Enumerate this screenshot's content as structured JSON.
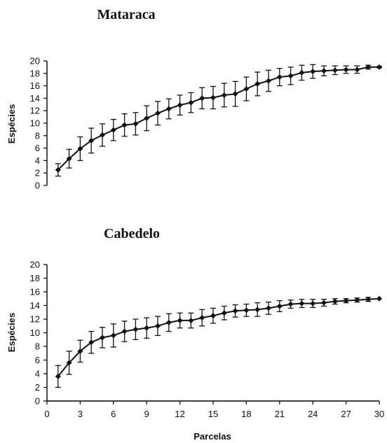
{
  "chart_data": [
    {
      "type": "line",
      "title": "Mataraca",
      "ylabel": "Espécies",
      "xlabel": "",
      "ylim": [
        0,
        20
      ],
      "yticks": [
        0,
        2,
        4,
        6,
        8,
        10,
        12,
        14,
        16,
        18,
        20
      ],
      "xlim": [
        0,
        30
      ],
      "show_x_tick_labels": false,
      "x": [
        1,
        2,
        3,
        4,
        5,
        6,
        7,
        8,
        9,
        10,
        11,
        12,
        13,
        14,
        15,
        16,
        17,
        18,
        19,
        20,
        21,
        22,
        23,
        24,
        25,
        26,
        27,
        28,
        29,
        30
      ],
      "series": [
        {
          "values": [
            2.5,
            4.3,
            5.9,
            7.2,
            8.1,
            8.9,
            9.7,
            9.9,
            10.8,
            11.6,
            12.3,
            12.9,
            13.3,
            14.0,
            14.1,
            14.5,
            14.7,
            15.5,
            16.3,
            16.8,
            17.4,
            17.6,
            18.1,
            18.3,
            18.4,
            18.5,
            18.6,
            18.6,
            19.0,
            19.0
          ],
          "errors": [
            1.0,
            1.5,
            1.9,
            2.0,
            1.8,
            1.7,
            1.8,
            1.8,
            2.0,
            1.9,
            1.6,
            1.6,
            1.6,
            1.7,
            1.8,
            1.9,
            2.0,
            1.9,
            1.9,
            1.7,
            1.4,
            1.4,
            1.2,
            1.1,
            0.8,
            0.7,
            0.6,
            0.6,
            0.3,
            0.1
          ]
        }
      ]
    },
    {
      "type": "line",
      "title": "Cabedelo",
      "ylabel": "Espécies",
      "xlabel": "Parcelas",
      "ylim": [
        0,
        20
      ],
      "yticks": [
        0,
        2,
        4,
        6,
        8,
        10,
        12,
        14,
        16,
        18,
        20
      ],
      "xlim": [
        0,
        30
      ],
      "xticks": [
        0,
        3,
        6,
        9,
        12,
        15,
        18,
        21,
        24,
        27,
        30
      ],
      "show_x_tick_labels": true,
      "x": [
        1,
        2,
        3,
        4,
        5,
        6,
        7,
        8,
        9,
        10,
        11,
        12,
        13,
        14,
        15,
        16,
        17,
        18,
        19,
        20,
        21,
        22,
        23,
        24,
        25,
        26,
        27,
        28,
        29,
        30
      ],
      "series": [
        {
          "values": [
            3.6,
            5.6,
            7.3,
            8.6,
            9.3,
            9.6,
            10.2,
            10.5,
            10.7,
            11.0,
            11.5,
            11.8,
            11.8,
            12.2,
            12.5,
            12.9,
            13.2,
            13.3,
            13.4,
            13.6,
            13.9,
            14.2,
            14.3,
            14.3,
            14.4,
            14.6,
            14.7,
            14.8,
            14.9,
            15.0
          ],
          "errors": [
            1.6,
            1.7,
            1.6,
            1.6,
            1.5,
            1.7,
            1.5,
            1.5,
            1.5,
            1.4,
            1.3,
            1.1,
            1.1,
            1.2,
            1.1,
            1.0,
            0.9,
            0.9,
            1.0,
            0.9,
            0.8,
            0.6,
            0.6,
            0.6,
            0.5,
            0.4,
            0.3,
            0.3,
            0.3,
            0.0
          ]
        }
      ]
    }
  ]
}
